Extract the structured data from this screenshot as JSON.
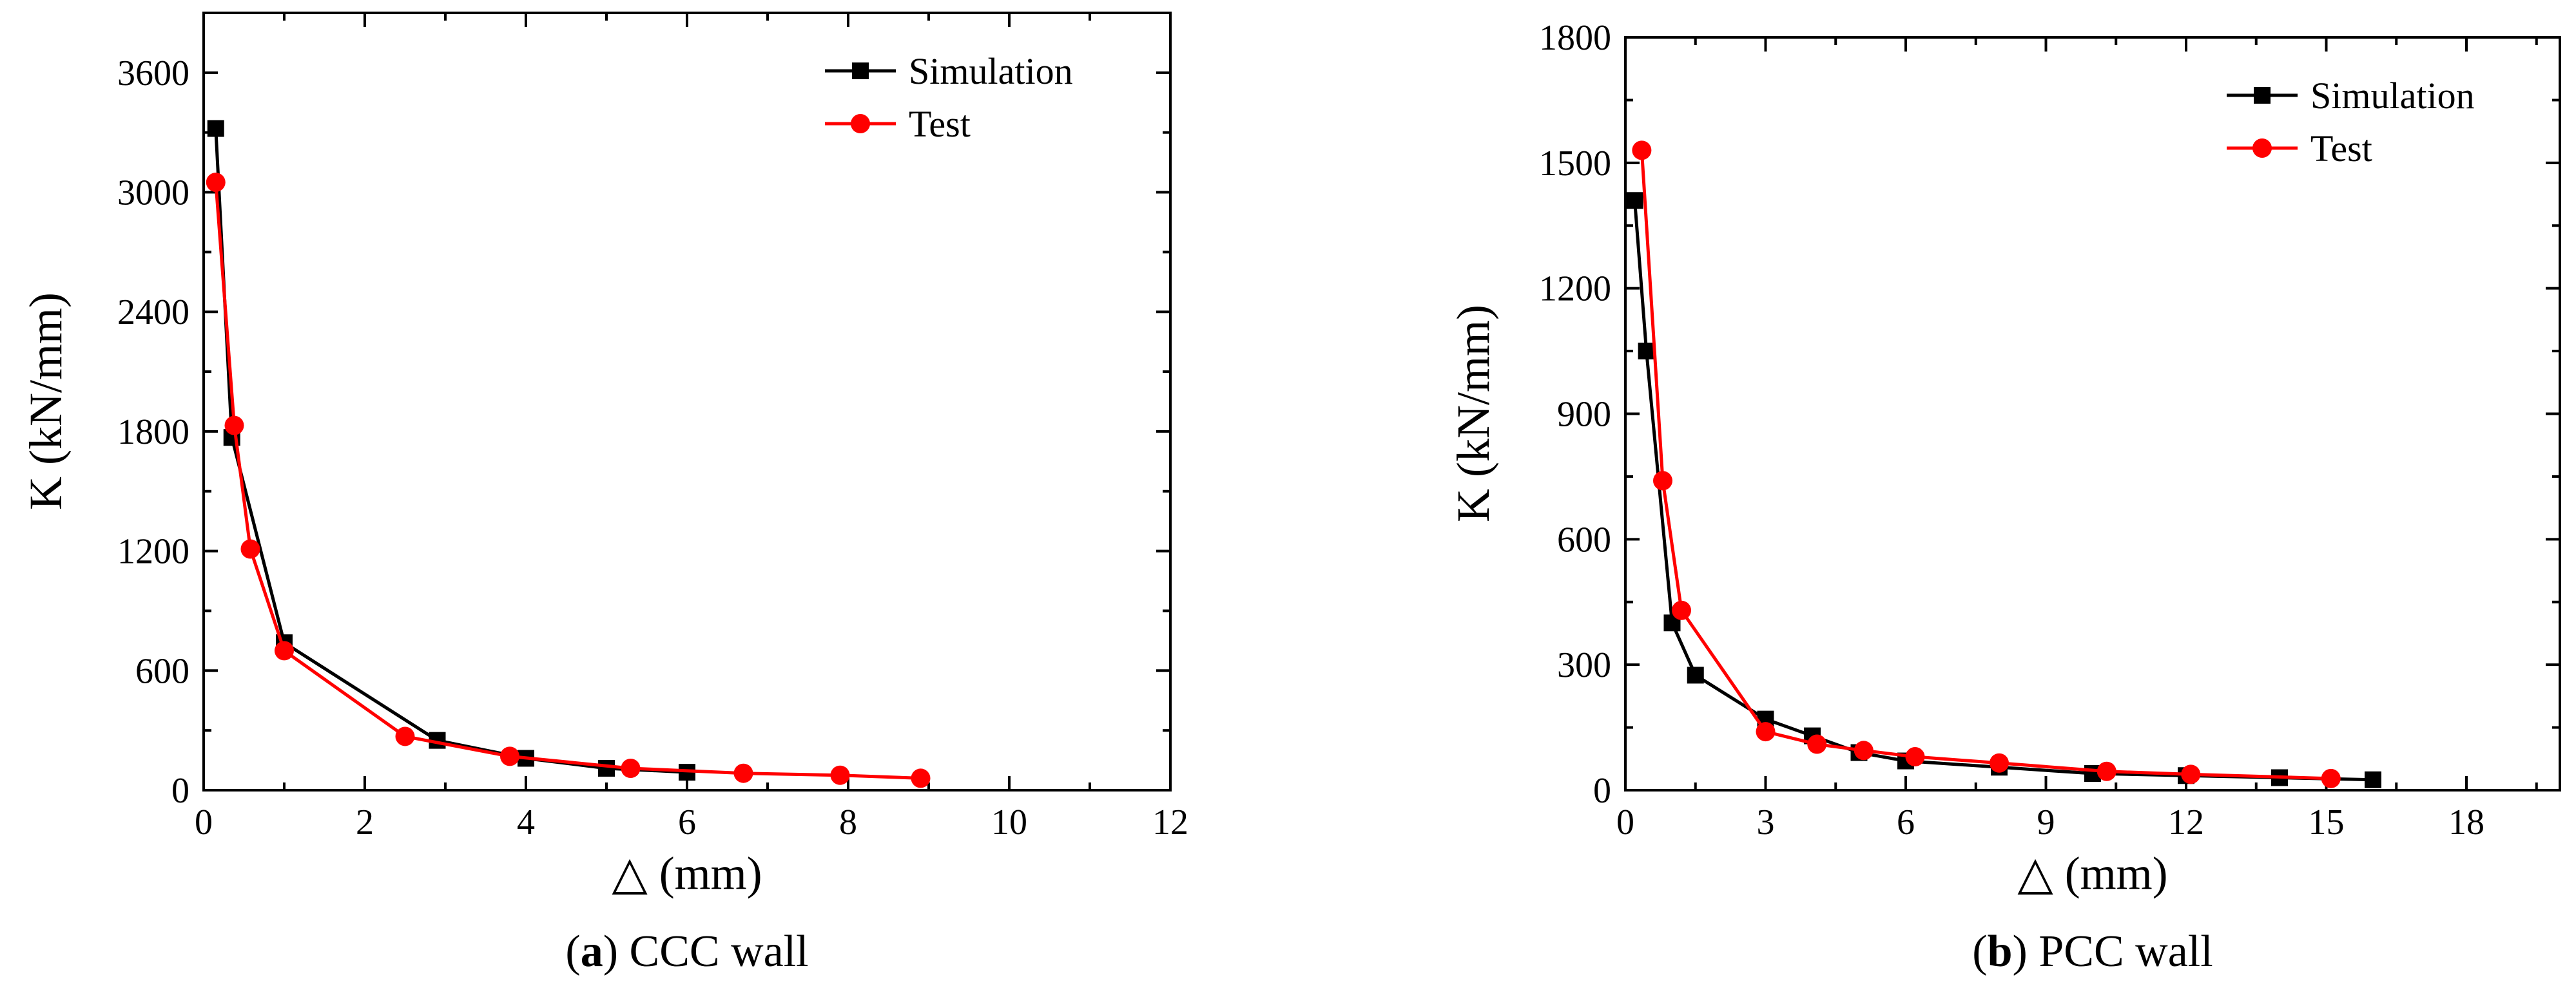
{
  "chart_data": [
    {
      "type": "line",
      "panel_label": "a",
      "caption": "CCC wall",
      "xlabel": "△  (mm)",
      "ylabel": "K (kN/mm)",
      "xlim": [
        0,
        12
      ],
      "ylim": [
        0,
        3900
      ],
      "xticks": [
        0,
        2,
        4,
        6,
        8,
        10,
        12
      ],
      "yticks": [
        0,
        600,
        1200,
        1800,
        2400,
        3000,
        3600
      ],
      "legend_position": "top-right",
      "series": [
        {
          "name": "Simulation",
          "color": "#000000",
          "marker": "square",
          "x": [
            0.15,
            0.35,
            1.0,
            2.9,
            4.0,
            5.0,
            6.0
          ],
          "y": [
            3320,
            1770,
            740,
            250,
            160,
            110,
            90
          ]
        },
        {
          "name": "Test",
          "color": "#ff0000",
          "marker": "circle",
          "x": [
            0.15,
            0.38,
            0.58,
            1.0,
            2.5,
            3.8,
            5.3,
            6.7,
            7.9,
            8.9
          ],
          "y": [
            3050,
            1830,
            1210,
            700,
            270,
            170,
            110,
            85,
            75,
            60
          ]
        }
      ]
    },
    {
      "type": "line",
      "panel_label": "b",
      "caption": "PCC wall",
      "xlabel": "△  (mm)",
      "ylabel": "K (kN/mm)",
      "xlim": [
        0,
        20
      ],
      "ylim": [
        0,
        1800
      ],
      "xticks": [
        0,
        3,
        6,
        9,
        12,
        15,
        18
      ],
      "yticks": [
        0,
        300,
        600,
        900,
        1200,
        1500,
        1800
      ],
      "legend_position": "top-right",
      "series": [
        {
          "name": "Simulation",
          "color": "#000000",
          "marker": "square",
          "x": [
            0.2,
            0.45,
            1.0,
            1.5,
            3.0,
            4.0,
            5.0,
            6.0,
            8.0,
            10.0,
            12.0,
            14.0,
            16.0
          ],
          "y": [
            1410,
            1050,
            400,
            275,
            170,
            130,
            90,
            70,
            55,
            40,
            35,
            30,
            25
          ]
        },
        {
          "name": "Test",
          "color": "#ff0000",
          "marker": "circle",
          "x": [
            0.35,
            0.8,
            1.2,
            3.0,
            4.1,
            5.1,
            6.2,
            8.0,
            10.3,
            12.1,
            15.1
          ],
          "y": [
            1530,
            740,
            430,
            140,
            110,
            95,
            80,
            65,
            45,
            38,
            28
          ]
        }
      ]
    }
  ]
}
